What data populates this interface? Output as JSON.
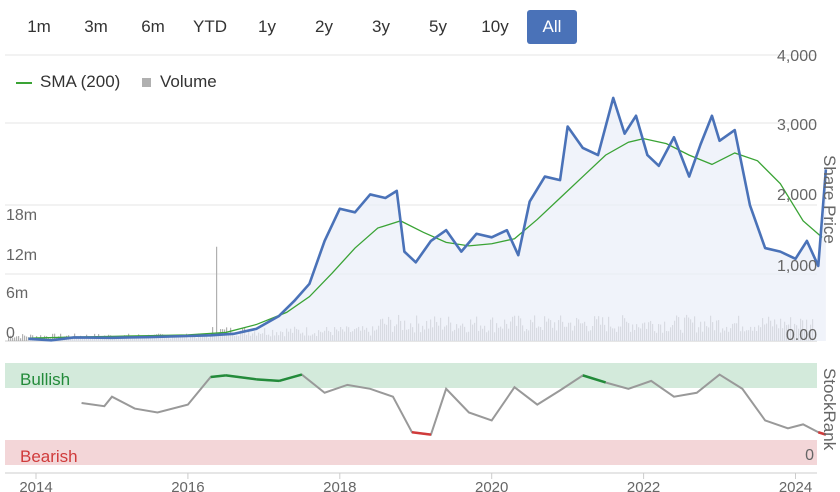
{
  "range_buttons": [
    {
      "label": "1m",
      "active": false
    },
    {
      "label": "3m",
      "active": false
    },
    {
      "label": "6m",
      "active": false
    },
    {
      "label": "YTD",
      "active": false
    },
    {
      "label": "1y",
      "active": false
    },
    {
      "label": "2y",
      "active": false
    },
    {
      "label": "3y",
      "active": false
    },
    {
      "label": "5y",
      "active": false
    },
    {
      "label": "10y",
      "active": false
    },
    {
      "label": "All",
      "active": true
    }
  ],
  "legend": {
    "sma_label": "SMA (200)",
    "volume_label": "Volume"
  },
  "colors": {
    "price": "#4a72b8",
    "sma": "#3aa335",
    "volume": "#b0b0b0",
    "bullish": "#238b3a",
    "bearish": "#d03b3b",
    "bullish_band": "#d3eadb",
    "bearish_band": "#f3d6d8",
    "rank_line": "#999999",
    "active_button": "#4a72b8"
  },
  "chart_data": {
    "type": "line",
    "x_ticks": [
      "2014",
      "2016",
      "2018",
      "2020",
      "2022",
      "2024"
    ],
    "price_axis": {
      "title": "Share Price",
      "ticks": [
        "4,000",
        "3,000",
        "2,000",
        "1,000",
        "0.00"
      ],
      "ylim": [
        0,
        4000
      ]
    },
    "volume_axis": {
      "ticks": [
        "18m",
        "12m",
        "6m",
        "0"
      ],
      "ylim": [
        0,
        18000000
      ]
    },
    "rank_axis": {
      "title": "StockRank",
      "ticks": [
        "0"
      ]
    },
    "bands": {
      "bullish": "Bullish",
      "bearish": "Bearish"
    },
    "series": [
      {
        "name": "SMA (200)",
        "x": [
          2013.9,
          2014.5,
          2015.0,
          2015.5,
          2016.0,
          2016.5,
          2016.9,
          2017.3,
          2017.6,
          2017.9,
          2018.2,
          2018.5,
          2018.8,
          2019.1,
          2019.4,
          2019.7,
          2020.0,
          2020.3,
          2020.6,
          2020.9,
          2021.2,
          2021.5,
          2021.8,
          2022.0,
          2022.3,
          2022.6,
          2022.9,
          2023.2,
          2023.5,
          2023.8,
          2024.1,
          2024.35
        ],
        "y": [
          40,
          55,
          65,
          75,
          85,
          120,
          230,
          400,
          620,
          950,
          1300,
          1580,
          1680,
          1520,
          1380,
          1330,
          1360,
          1430,
          1700,
          2000,
          2300,
          2600,
          2780,
          2830,
          2760,
          2600,
          2470,
          2630,
          2520,
          2200,
          1680,
          1450
        ]
      },
      {
        "name": "Share Price",
        "x": [
          2013.9,
          2014.2,
          2014.5,
          2015.0,
          2015.5,
          2016.0,
          2016.3,
          2016.6,
          2016.9,
          2017.2,
          2017.4,
          2017.6,
          2017.8,
          2018.0,
          2018.2,
          2018.4,
          2018.6,
          2018.75,
          2018.85,
          2019.0,
          2019.2,
          2019.4,
          2019.6,
          2019.8,
          2020.0,
          2020.2,
          2020.35,
          2020.5,
          2020.7,
          2020.9,
          2021.0,
          2021.2,
          2021.4,
          2021.6,
          2021.75,
          2021.9,
          2022.05,
          2022.2,
          2022.4,
          2022.6,
          2022.75,
          2022.9,
          2023.0,
          2023.2,
          2023.4,
          2023.6,
          2023.8,
          2024.0,
          2024.15,
          2024.3,
          2024.4
        ],
        "y": [
          30,
          10,
          50,
          45,
          55,
          70,
          80,
          100,
          170,
          350,
          560,
          800,
          1400,
          1850,
          1800,
          2050,
          2000,
          2100,
          1250,
          1100,
          1400,
          1550,
          1250,
          1500,
          1450,
          1550,
          1200,
          1950,
          2300,
          2250,
          3000,
          2700,
          2600,
          3400,
          2900,
          3150,
          2600,
          2450,
          2850,
          2300,
          2750,
          3150,
          2800,
          2950,
          1900,
          1300,
          1250,
          1150,
          1400,
          1050,
          2400
        ]
      },
      {
        "name": "StockRank",
        "x": [
          2014.6,
          2014.9,
          2015.0,
          2015.3,
          2015.6,
          2016.0,
          2016.3,
          2016.5,
          2016.9,
          2017.2,
          2017.5,
          2017.8,
          2018.1,
          2018.4,
          2018.7,
          2018.95,
          2019.2,
          2019.4,
          2019.7,
          2020.0,
          2020.3,
          2020.6,
          2020.9,
          2021.2,
          2021.5,
          2021.8,
          2022.1,
          2022.4,
          2022.7,
          2023.0,
          2023.3,
          2023.6,
          2023.9,
          2024.1,
          2024.3,
          2024.4
        ],
        "y": [
          62,
          58,
          70,
          55,
          50,
          60,
          95,
          97,
          92,
          90,
          98,
          75,
          85,
          80,
          70,
          25,
          22,
          80,
          50,
          40,
          82,
          60,
          78,
          97,
          88,
          80,
          90,
          70,
          75,
          98,
          80,
          40,
          30,
          35,
          25,
          22
        ]
      }
    ]
  }
}
